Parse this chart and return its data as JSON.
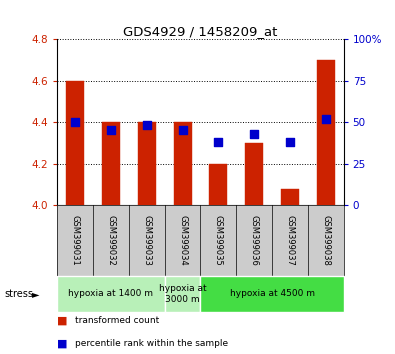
{
  "title": "GDS4929 / 1458209_at",
  "samples": [
    "GSM399031",
    "GSM399032",
    "GSM399033",
    "GSM399034",
    "GSM399035",
    "GSM399036",
    "GSM399037",
    "GSM399038"
  ],
  "bar_values": [
    4.6,
    4.4,
    4.4,
    4.4,
    4.2,
    4.3,
    4.08,
    4.7
  ],
  "bar_bottom": 4.0,
  "bar_color": "#cc2200",
  "dot_values_pct": [
    50,
    45,
    48,
    45,
    38,
    43,
    38,
    52
  ],
  "dot_color": "#0000cc",
  "ylim_left": [
    4.0,
    4.8
  ],
  "ylim_right": [
    0,
    100
  ],
  "yticks_left": [
    4.0,
    4.2,
    4.4,
    4.6,
    4.8
  ],
  "yticks_right": [
    0,
    25,
    50,
    75,
    100
  ],
  "grid_values": [
    4.2,
    4.4,
    4.6
  ],
  "group_labels": [
    "hypoxia at 1400 m",
    "hypoxia at\n3000 m",
    "hypoxia at 4500 m"
  ],
  "group_ranges": [
    [
      0,
      3
    ],
    [
      3,
      4
    ],
    [
      4,
      8
    ]
  ],
  "group_colors_light": "#b8f0b8",
  "group_colors_dark": "#44dd44",
  "stress_label": "stress",
  "legend_items": [
    "transformed count",
    "percentile rank within the sample"
  ],
  "legend_colors": [
    "#cc2200",
    "#0000cc"
  ],
  "bar_width": 0.5,
  "bg_color": "#ffffff",
  "tick_label_color_left": "#cc2200",
  "tick_label_color_right": "#0000cc",
  "sample_bg_color": "#cccccc"
}
